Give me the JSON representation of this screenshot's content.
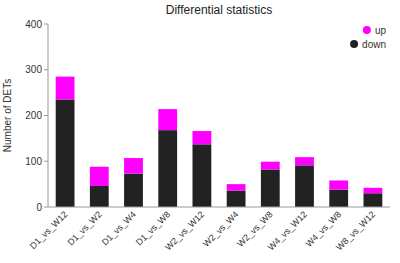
{
  "chart_data": {
    "type": "bar",
    "stacked": true,
    "title": "Differential statistics",
    "ylabel": "Number of DETs",
    "categories": [
      "D1_vs_W12",
      "D1_vs_W2",
      "D1_vs_W4",
      "D1_vs_W8",
      "W2_vs_W12",
      "W2_vs_W4",
      "W2_vs_W8",
      "W4_vs_W12",
      "W4_vs_W8",
      "W8_vs_W12"
    ],
    "series": [
      {
        "name": "down",
        "color": "#222222",
        "values": [
          235,
          46,
          73,
          168,
          137,
          36,
          82,
          91,
          38,
          30
        ]
      },
      {
        "name": "up",
        "color": "#FF00FF",
        "values": [
          50,
          42,
          34,
          46,
          29,
          14,
          17,
          18,
          20,
          12
        ]
      }
    ],
    "ylim": [
      0,
      400
    ],
    "yticks": [
      0,
      100,
      200,
      300,
      400
    ],
    "grid": false,
    "legend": "upper right"
  }
}
